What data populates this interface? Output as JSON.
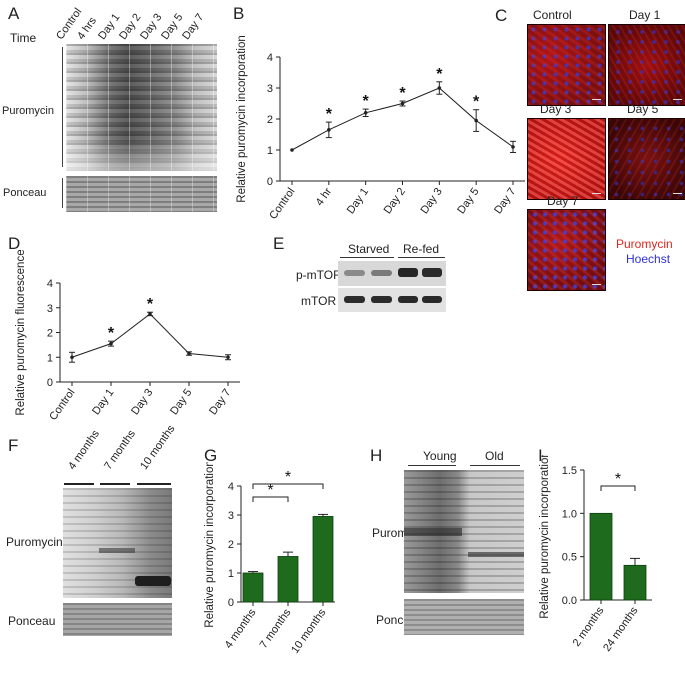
{
  "panels": {
    "A": {
      "label": "A",
      "time_label": "Time",
      "lanes": [
        "Control",
        "4 hrs",
        "Day 1",
        "Day 2",
        "Day 3",
        "Day 5",
        "Day 7"
      ],
      "rows": [
        "Puromycin",
        "Ponceau"
      ]
    },
    "B": {
      "label": "B",
      "chart_data": {
        "type": "line",
        "categories": [
          "Control",
          "4 hr",
          "Day 1",
          "Day 2",
          "Day 3",
          "Day 5",
          "Day 7"
        ],
        "values": [
          1.0,
          1.65,
          2.2,
          2.5,
          3.0,
          1.95,
          1.1
        ],
        "errors": [
          0.0,
          0.25,
          0.12,
          0.08,
          0.2,
          0.35,
          0.18
        ],
        "significant": [
          false,
          true,
          true,
          true,
          true,
          true,
          false
        ],
        "marker": "*",
        "ylabel": "Relative puromycin incorporation",
        "ylim": [
          0,
          4
        ],
        "yticks": [
          "0",
          "1",
          "2",
          "3",
          "4"
        ],
        "color": "#222222"
      }
    },
    "C": {
      "label": "C",
      "images": [
        "Control",
        "Day 1",
        "Day 3",
        "Day 5",
        "Day 7"
      ],
      "legend": [
        {
          "text": "Puromycin",
          "color": "#e0261f"
        },
        {
          "text": "Hoechst",
          "color": "#2f2fd8"
        }
      ]
    },
    "D": {
      "label": "D",
      "chart_data": {
        "type": "line",
        "categories": [
          "Control",
          "Day 1",
          "Day 3",
          "Day 5",
          "Day 7"
        ],
        "values": [
          1.0,
          1.55,
          2.75,
          1.15,
          1.0
        ],
        "errors": [
          0.2,
          0.1,
          0.07,
          0.07,
          0.1
        ],
        "significant": [
          false,
          true,
          true,
          false,
          false
        ],
        "marker": "*",
        "ylabel": "Relative puromycin fluorescence",
        "ylim": [
          0,
          4
        ],
        "yticks": [
          "0",
          "1",
          "2",
          "3",
          "4"
        ],
        "color": "#222222"
      }
    },
    "E": {
      "label": "E",
      "groups": [
        "Starved",
        "Re-fed"
      ],
      "rows": [
        "p-mTOR",
        "mTOR"
      ]
    },
    "F": {
      "label": "F",
      "groups": [
        "4 months",
        "7 months",
        "10 months"
      ],
      "rows": [
        "Puromycin",
        "Ponceau"
      ]
    },
    "G": {
      "label": "G",
      "chart_data": {
        "type": "bar",
        "categories": [
          "4 months",
          "7 months",
          "10 months"
        ],
        "values": [
          1.0,
          1.57,
          2.95
        ],
        "errors": [
          0.05,
          0.15,
          0.07
        ],
        "ylabel": "Relative puromycin incorporation",
        "ylim": [
          0,
          4
        ],
        "yticks": [
          "0",
          "1",
          "2",
          "3",
          "4"
        ],
        "comparisons": [
          {
            "from": "4 months",
            "to": "7 months",
            "marker": "*"
          },
          {
            "from": "4 months",
            "to": "10 months",
            "marker": "*"
          }
        ],
        "color": "#1e6b1e"
      }
    },
    "H": {
      "label": "H",
      "groups": [
        "Young",
        "Old"
      ],
      "rows": [
        "Puromycin",
        "Ponceau"
      ]
    },
    "I": {
      "label": "I",
      "chart_data": {
        "type": "bar",
        "categories": [
          "2 months",
          "24 months"
        ],
        "values": [
          1.0,
          0.4
        ],
        "errors": [
          0.0,
          0.08
        ],
        "ylabel": "Relative puromycin incorporation",
        "ylim": [
          0,
          1.5
        ],
        "yticks": [
          "0.0",
          "0.5",
          "1.0",
          "1.5"
        ],
        "comparisons": [
          {
            "from": "2 months",
            "to": "24 months",
            "marker": "*"
          }
        ],
        "color": "#1e6b1e"
      }
    }
  }
}
